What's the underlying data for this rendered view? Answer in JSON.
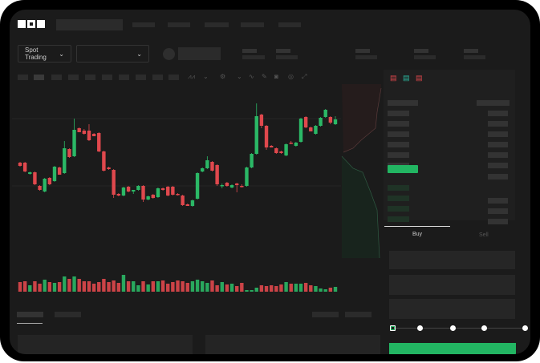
{
  "brand": {
    "logo_text": "OKX"
  },
  "header": {
    "spot_trading_label": "Spot Trading",
    "pair_selector_value": ""
  },
  "order_form": {
    "tabs": [
      {
        "label": "Buy",
        "active": true
      },
      {
        "label": "Sell",
        "active": false
      }
    ],
    "slider_level_percent": 0,
    "slider_marks": [
      0,
      25,
      50,
      75,
      100
    ]
  },
  "colors": {
    "up": "#2bb866",
    "down": "#e0484d",
    "background": "#1b1b1b",
    "accent": "#22b562"
  },
  "icons": [
    "chevron-down-icon",
    "line-icon",
    "pencil-icon",
    "camera-icon",
    "target-icon",
    "expand-icon",
    "orderbook-both-icon",
    "orderbook-buy-icon",
    "orderbook-sell-icon"
  ],
  "chart_data": {
    "type": "candlestick",
    "candles_ohlc": [
      [
        97,
        98,
        92,
        93
      ],
      [
        97,
        98,
        85,
        86
      ],
      [
        83,
        86,
        82,
        85
      ],
      [
        85,
        86,
        69,
        70
      ],
      [
        68,
        69,
        62,
        63
      ],
      [
        61,
        78,
        60,
        77
      ],
      [
        78,
        79,
        69,
        70
      ],
      [
        74,
        93,
        73,
        92
      ],
      [
        91,
        92,
        82,
        82
      ],
      [
        84,
        124,
        83,
        115
      ],
      [
        114,
        115,
        103,
        104
      ],
      [
        105,
        152,
        104,
        138
      ],
      [
        140,
        141,
        135,
        135
      ],
      [
        137,
        139,
        132,
        133
      ],
      [
        137,
        145,
        124,
        125
      ],
      [
        133,
        134,
        130,
        130
      ],
      [
        134,
        135,
        110,
        111
      ],
      [
        111,
        112,
        86,
        87
      ],
      [
        91,
        92,
        88,
        89
      ],
      [
        88,
        89,
        53,
        57
      ],
      [
        58,
        59,
        55,
        56
      ],
      [
        56,
        67,
        55,
        66
      ],
      [
        67,
        68,
        60,
        61
      ],
      [
        61,
        63,
        58,
        63
      ],
      [
        63,
        69,
        62,
        68
      ],
      [
        68,
        69,
        48,
        51
      ],
      [
        51,
        56,
        50,
        55
      ],
      [
        57,
        58,
        52,
        53
      ],
      [
        54,
        66,
        53,
        65
      ],
      [
        65,
        66,
        62,
        63
      ],
      [
        67,
        68,
        55,
        56
      ],
      [
        67,
        68,
        56,
        57
      ],
      [
        58,
        59,
        56,
        57
      ],
      [
        56,
        57,
        43,
        44
      ],
      [
        45,
        46,
        43,
        43
      ],
      [
        43,
        51,
        42,
        50
      ],
      [
        52,
        85,
        51,
        84
      ],
      [
        86,
        91,
        85,
        90
      ],
      [
        90,
        105,
        89,
        100
      ],
      [
        98,
        99,
        86,
        87
      ],
      [
        94,
        95,
        68,
        70
      ],
      [
        68,
        71,
        65,
        69
      ],
      [
        72,
        73,
        67,
        68
      ],
      [
        66,
        70,
        65,
        69
      ],
      [
        71,
        72,
        60,
        69
      ],
      [
        68,
        70,
        66,
        67
      ],
      [
        68,
        92,
        67,
        91
      ],
      [
        91,
        109,
        90,
        108
      ],
      [
        108,
        171,
        107,
        155
      ],
      [
        157,
        158,
        140,
        143
      ],
      [
        143,
        144,
        113,
        116
      ],
      [
        118,
        119,
        116,
        116
      ],
      [
        115,
        116,
        108,
        109
      ],
      [
        111,
        112,
        108,
        109
      ],
      [
        106,
        121,
        105,
        120
      ],
      [
        122,
        124,
        120,
        121
      ],
      [
        118,
        123,
        117,
        122
      ],
      [
        123,
        153,
        122,
        152
      ],
      [
        154,
        155,
        140,
        141
      ],
      [
        141,
        142,
        136,
        136
      ],
      [
        133,
        144,
        132,
        143
      ],
      [
        143,
        154,
        142,
        153
      ],
      [
        154,
        164,
        153,
        163
      ],
      [
        154,
        155,
        145,
        147
      ],
      [
        145,
        155,
        144,
        151
      ]
    ],
    "volumes": [
      12,
      13,
      8,
      13,
      10,
      15,
      12,
      11,
      12,
      19,
      16,
      19,
      16,
      13,
      13,
      10,
      12,
      16,
      12,
      14,
      11,
      21,
      13,
      13,
      8,
      13,
      9,
      13,
      13,
      14,
      10,
      12,
      14,
      13,
      11,
      13,
      15,
      13,
      11,
      14,
      8,
      12,
      9,
      10,
      7,
      11,
      2,
      2,
      5,
      8,
      7,
      8,
      7,
      9,
      12,
      10,
      10,
      10,
      11,
      8,
      7,
      4,
      3,
      5,
      6
    ]
  }
}
